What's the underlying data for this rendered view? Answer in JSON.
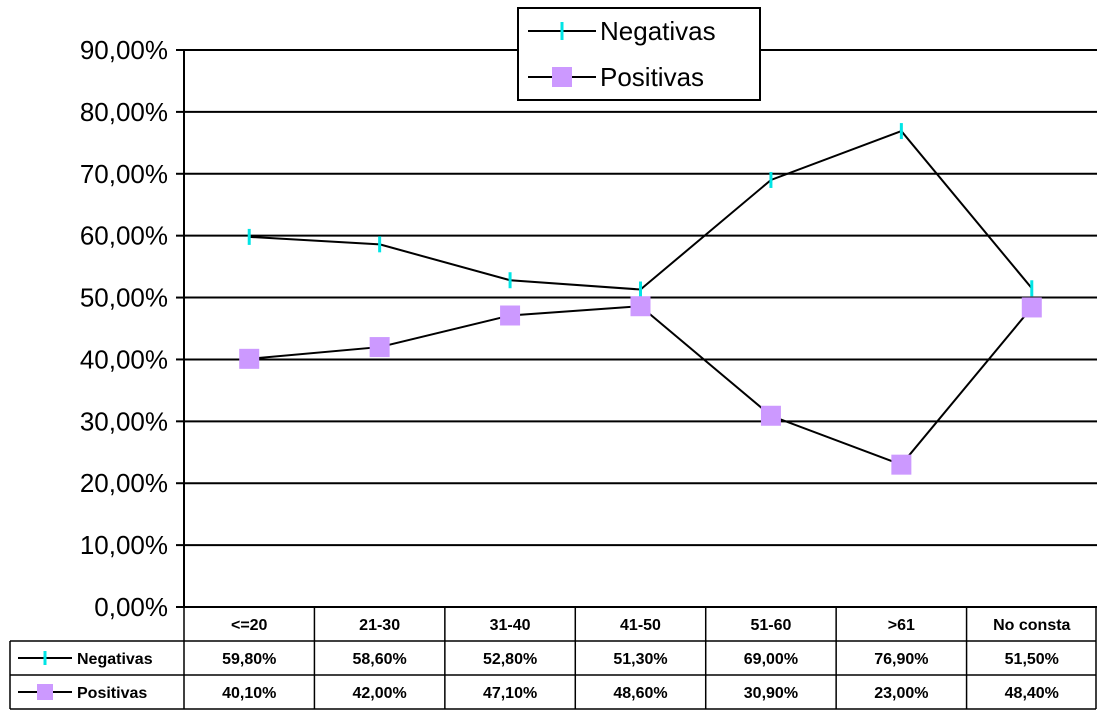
{
  "chart_data": {
    "type": "line",
    "categories": [
      "<=20",
      "21-30",
      "31-40",
      "41-50",
      "51-60",
      ">61",
      "No consta"
    ],
    "series": [
      {
        "name": "Negativas",
        "values": [
          59.8,
          58.6,
          52.8,
          51.3,
          69.0,
          76.9,
          51.5
        ],
        "labels": [
          "59,80%",
          "58,60%",
          "52,80%",
          "51,30%",
          "69,00%",
          "76,90%",
          "51,50%"
        ],
        "color": "#000000",
        "marker": "dash",
        "marker_color": "#00e5e5"
      },
      {
        "name": "Positivas",
        "values": [
          40.1,
          42.0,
          47.1,
          48.6,
          30.9,
          23.0,
          48.4
        ],
        "labels": [
          "40,10%",
          "42,00%",
          "47,10%",
          "48,60%",
          "30,90%",
          "23,00%",
          "48,40%"
        ],
        "color": "#000000",
        "marker": "square",
        "marker_color": "#cc99ff"
      }
    ],
    "ylim": [
      0,
      90
    ],
    "yticks": [
      "0,00%",
      "10,00%",
      "20,00%",
      "30,00%",
      "40,00%",
      "50,00%",
      "60,00%",
      "70,00%",
      "80,00%",
      "90,00%"
    ],
    "grid": true,
    "legend": "top-center",
    "data_table": true,
    "title": "",
    "xlabel": "",
    "ylabel": ""
  }
}
